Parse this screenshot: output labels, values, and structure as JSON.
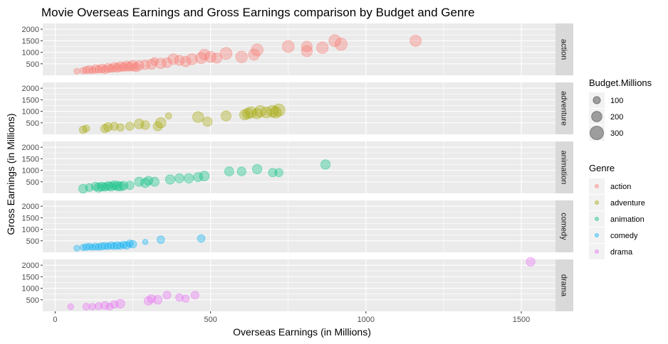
{
  "chart_data": {
    "type": "scatter",
    "title": "Movie Overseas Earnings and Gross Earnings comparison by Budget and Genre",
    "xlabel": "Overseas Earnings (in Millions)",
    "ylabel": "Gross Earnings  (in Millions)",
    "xlim": [
      -40,
      1610
    ],
    "ylim": [
      0,
      2250
    ],
    "x_ticks": [
      0,
      500,
      1000,
      1500
    ],
    "y_ticks": [
      500,
      1000,
      1500,
      2000
    ],
    "grid": true,
    "facet_by": "Genre",
    "size_legend": {
      "title": "Budget.Millions",
      "entries": [
        {
          "label": "100",
          "value": 100
        },
        {
          "label": "200",
          "value": 200
        },
        {
          "label": "300",
          "value": 300
        }
      ]
    },
    "color_legend": {
      "title": "Genre",
      "entries": [
        {
          "label": "action",
          "color": "#F8766D"
        },
        {
          "label": "adventure",
          "color": "#A3A500"
        },
        {
          "label": "animation",
          "color": "#00BF7D"
        },
        {
          "label": "comedy",
          "color": "#00B0F6"
        },
        {
          "label": "drama",
          "color": "#E76BF3"
        }
      ]
    },
    "series": [
      {
        "name": "action",
        "color": "#F8766D",
        "points": [
          {
            "x": 70,
            "y": 180,
            "size": 60
          },
          {
            "x": 90,
            "y": 200,
            "size": 80
          },
          {
            "x": 100,
            "y": 230,
            "size": 100
          },
          {
            "x": 110,
            "y": 250,
            "size": 120
          },
          {
            "x": 120,
            "y": 220,
            "size": 90
          },
          {
            "x": 130,
            "y": 280,
            "size": 140
          },
          {
            "x": 140,
            "y": 260,
            "size": 110
          },
          {
            "x": 150,
            "y": 300,
            "size": 150
          },
          {
            "x": 160,
            "y": 250,
            "size": 130
          },
          {
            "x": 170,
            "y": 320,
            "size": 160
          },
          {
            "x": 180,
            "y": 300,
            "size": 120
          },
          {
            "x": 190,
            "y": 350,
            "size": 170
          },
          {
            "x": 200,
            "y": 330,
            "size": 150
          },
          {
            "x": 210,
            "y": 380,
            "size": 180
          },
          {
            "x": 220,
            "y": 360,
            "size": 140
          },
          {
            "x": 230,
            "y": 400,
            "size": 190
          },
          {
            "x": 240,
            "y": 380,
            "size": 160
          },
          {
            "x": 250,
            "y": 420,
            "size": 200
          },
          {
            "x": 260,
            "y": 350,
            "size": 150
          },
          {
            "x": 270,
            "y": 430,
            "size": 180
          },
          {
            "x": 290,
            "y": 460,
            "size": 170
          },
          {
            "x": 310,
            "y": 480,
            "size": 190
          },
          {
            "x": 320,
            "y": 600,
            "size": 120
          },
          {
            "x": 340,
            "y": 520,
            "size": 200
          },
          {
            "x": 360,
            "y": 550,
            "size": 180
          },
          {
            "x": 380,
            "y": 700,
            "size": 210
          },
          {
            "x": 400,
            "y": 650,
            "size": 190
          },
          {
            "x": 420,
            "y": 600,
            "size": 200
          },
          {
            "x": 440,
            "y": 700,
            "size": 220
          },
          {
            "x": 470,
            "y": 750,
            "size": 230
          },
          {
            "x": 480,
            "y": 900,
            "size": 210
          },
          {
            "x": 500,
            "y": 800,
            "size": 220
          },
          {
            "x": 520,
            "y": 750,
            "size": 200
          },
          {
            "x": 550,
            "y": 950,
            "size": 250
          },
          {
            "x": 600,
            "y": 800,
            "size": 240
          },
          {
            "x": 640,
            "y": 900,
            "size": 220
          },
          {
            "x": 650,
            "y": 1100,
            "size": 250
          },
          {
            "x": 750,
            "y": 1250,
            "size": 250
          },
          {
            "x": 810,
            "y": 1050,
            "size": 220
          },
          {
            "x": 810,
            "y": 1250,
            "size": 210
          },
          {
            "x": 860,
            "y": 1200,
            "size": 240
          },
          {
            "x": 900,
            "y": 1500,
            "size": 250
          },
          {
            "x": 920,
            "y": 1350,
            "size": 260
          },
          {
            "x": 1160,
            "y": 1500,
            "size": 230
          }
        ]
      },
      {
        "name": "adventure",
        "color": "#A3A500",
        "points": [
          {
            "x": 90,
            "y": 200,
            "size": 110
          },
          {
            "x": 100,
            "y": 250,
            "size": 90
          },
          {
            "x": 160,
            "y": 250,
            "size": 140
          },
          {
            "x": 170,
            "y": 320,
            "size": 150
          },
          {
            "x": 190,
            "y": 350,
            "size": 130
          },
          {
            "x": 210,
            "y": 300,
            "size": 110
          },
          {
            "x": 240,
            "y": 350,
            "size": 130
          },
          {
            "x": 270,
            "y": 450,
            "size": 180
          },
          {
            "x": 290,
            "y": 400,
            "size": 150
          },
          {
            "x": 330,
            "y": 350,
            "size": 160
          },
          {
            "x": 340,
            "y": 500,
            "size": 200
          },
          {
            "x": 365,
            "y": 800,
            "size": 70
          },
          {
            "x": 460,
            "y": 750,
            "size": 220
          },
          {
            "x": 490,
            "y": 550,
            "size": 170
          },
          {
            "x": 550,
            "y": 800,
            "size": 190
          },
          {
            "x": 610,
            "y": 850,
            "size": 200
          },
          {
            "x": 620,
            "y": 900,
            "size": 210
          },
          {
            "x": 630,
            "y": 950,
            "size": 230
          },
          {
            "x": 650,
            "y": 900,
            "size": 200
          },
          {
            "x": 660,
            "y": 1000,
            "size": 240
          },
          {
            "x": 680,
            "y": 950,
            "size": 220
          },
          {
            "x": 700,
            "y": 1000,
            "size": 250
          },
          {
            "x": 710,
            "y": 950,
            "size": 230
          },
          {
            "x": 720,
            "y": 1050,
            "size": 260
          }
        ]
      },
      {
        "name": "animation",
        "color": "#00BF7D",
        "points": [
          {
            "x": 90,
            "y": 200,
            "size": 150
          },
          {
            "x": 110,
            "y": 250,
            "size": 120
          },
          {
            "x": 130,
            "y": 300,
            "size": 140
          },
          {
            "x": 140,
            "y": 250,
            "size": 160
          },
          {
            "x": 150,
            "y": 300,
            "size": 150
          },
          {
            "x": 160,
            "y": 280,
            "size": 140
          },
          {
            "x": 170,
            "y": 320,
            "size": 150
          },
          {
            "x": 180,
            "y": 300,
            "size": 160
          },
          {
            "x": 190,
            "y": 350,
            "size": 150
          },
          {
            "x": 200,
            "y": 320,
            "size": 170
          },
          {
            "x": 210,
            "y": 300,
            "size": 160
          },
          {
            "x": 220,
            "y": 330,
            "size": 150
          },
          {
            "x": 240,
            "y": 350,
            "size": 140
          },
          {
            "x": 270,
            "y": 500,
            "size": 160
          },
          {
            "x": 290,
            "y": 450,
            "size": 170
          },
          {
            "x": 300,
            "y": 550,
            "size": 150
          },
          {
            "x": 320,
            "y": 500,
            "size": 160
          },
          {
            "x": 370,
            "y": 600,
            "size": 170
          },
          {
            "x": 400,
            "y": 650,
            "size": 160
          },
          {
            "x": 430,
            "y": 650,
            "size": 170
          },
          {
            "x": 460,
            "y": 700,
            "size": 160
          },
          {
            "x": 480,
            "y": 750,
            "size": 180
          },
          {
            "x": 560,
            "y": 950,
            "size": 160
          },
          {
            "x": 600,
            "y": 950,
            "size": 150
          },
          {
            "x": 650,
            "y": 1050,
            "size": 170
          },
          {
            "x": 700,
            "y": 900,
            "size": 140
          },
          {
            "x": 720,
            "y": 900,
            "size": 130
          },
          {
            "x": 870,
            "y": 1250,
            "size": 170
          }
        ]
      },
      {
        "name": "comedy",
        "color": "#00B0F6",
        "points": [
          {
            "x": 70,
            "y": 180,
            "size": 60
          },
          {
            "x": 90,
            "y": 210,
            "size": 70
          },
          {
            "x": 100,
            "y": 230,
            "size": 90
          },
          {
            "x": 110,
            "y": 250,
            "size": 80
          },
          {
            "x": 120,
            "y": 220,
            "size": 70
          },
          {
            "x": 130,
            "y": 250,
            "size": 90
          },
          {
            "x": 140,
            "y": 230,
            "size": 80
          },
          {
            "x": 150,
            "y": 260,
            "size": 100
          },
          {
            "x": 160,
            "y": 280,
            "size": 90
          },
          {
            "x": 170,
            "y": 260,
            "size": 80
          },
          {
            "x": 180,
            "y": 300,
            "size": 100
          },
          {
            "x": 190,
            "y": 270,
            "size": 90
          },
          {
            "x": 200,
            "y": 300,
            "size": 110
          },
          {
            "x": 210,
            "y": 280,
            "size": 90
          },
          {
            "x": 220,
            "y": 330,
            "size": 100
          },
          {
            "x": 230,
            "y": 300,
            "size": 110
          },
          {
            "x": 240,
            "y": 380,
            "size": 100
          },
          {
            "x": 250,
            "y": 350,
            "size": 110
          },
          {
            "x": 290,
            "y": 450,
            "size": 40
          },
          {
            "x": 340,
            "y": 550,
            "size": 110
          },
          {
            "x": 470,
            "y": 600,
            "size": 110
          }
        ]
      },
      {
        "name": "drama",
        "color": "#E76BF3",
        "points": [
          {
            "x": 50,
            "y": 200,
            "size": 60
          },
          {
            "x": 100,
            "y": 200,
            "size": 90
          },
          {
            "x": 120,
            "y": 200,
            "size": 80
          },
          {
            "x": 140,
            "y": 220,
            "size": 100
          },
          {
            "x": 160,
            "y": 250,
            "size": 120
          },
          {
            "x": 175,
            "y": 200,
            "size": 90
          },
          {
            "x": 190,
            "y": 300,
            "size": 110
          },
          {
            "x": 210,
            "y": 330,
            "size": 150
          },
          {
            "x": 300,
            "y": 450,
            "size": 140
          },
          {
            "x": 310,
            "y": 550,
            "size": 130
          },
          {
            "x": 330,
            "y": 500,
            "size": 150
          },
          {
            "x": 360,
            "y": 700,
            "size": 120
          },
          {
            "x": 400,
            "y": 600,
            "size": 110
          },
          {
            "x": 420,
            "y": 550,
            "size": 100
          },
          {
            "x": 450,
            "y": 700,
            "size": 120
          },
          {
            "x": 1530,
            "y": 2150,
            "size": 150
          }
        ]
      }
    ]
  }
}
